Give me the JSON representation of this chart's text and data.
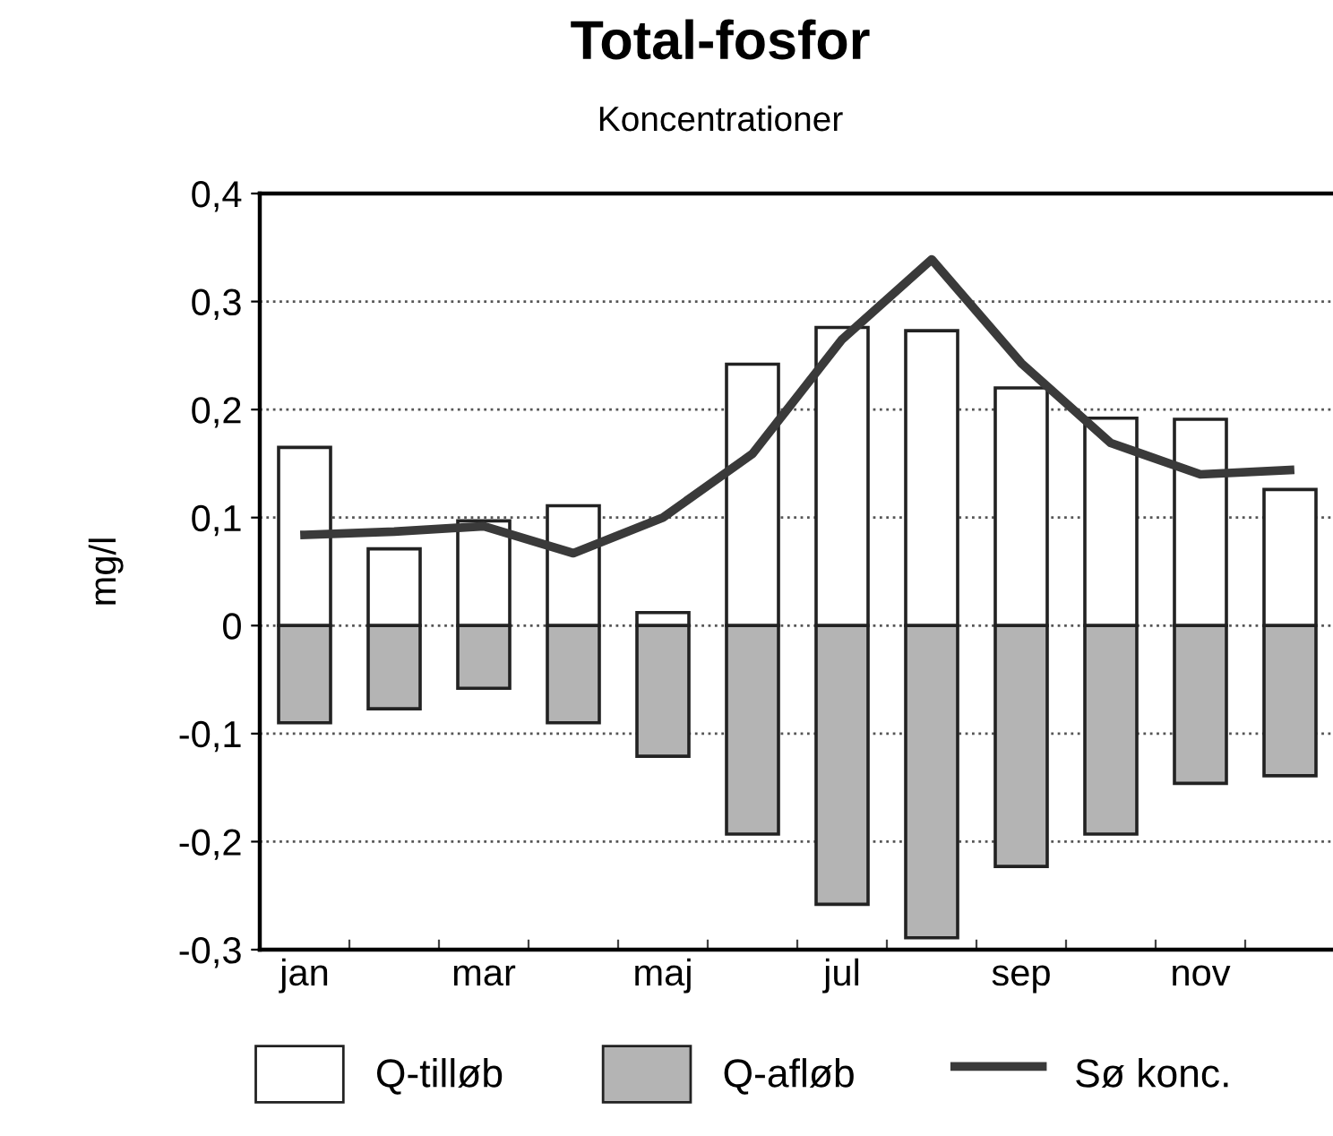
{
  "chart_data": {
    "type": "bar",
    "title": "Total-fosfor",
    "subtitle": "Koncentrationer",
    "ylabel": "mg/l",
    "categories": [
      "jan",
      null,
      "mar",
      null,
      "maj",
      null,
      "jul",
      null,
      "sep",
      null,
      "nov",
      null
    ],
    "series": [
      {
        "name": "Q-tilløb",
        "color": "#ffffff",
        "values": [
          0.165,
          0.071,
          0.097,
          0.111,
          0.012,
          0.242,
          0.276,
          0.273,
          0.22,
          0.192,
          0.191,
          0.126
        ]
      },
      {
        "name": "Q-afløb",
        "color": "#b4b4b4",
        "values": [
          -0.09,
          -0.077,
          -0.058,
          -0.09,
          -0.121,
          -0.193,
          -0.258,
          -0.289,
          -0.223,
          -0.193,
          -0.146,
          -0.139
        ]
      },
      {
        "name": "Sø konc.",
        "type": "line",
        "color": "#3a3a3a",
        "values": [
          0.084,
          0.087,
          0.092,
          0.067,
          0.1,
          0.159,
          0.265,
          0.339,
          0.243,
          0.169,
          0.14,
          0.144
        ]
      }
    ],
    "ylim": [
      -0.3,
      0.4
    ],
    "yticks": [
      {
        "value": -0.3,
        "label": "-0,3"
      },
      {
        "value": -0.2,
        "label": "-0,2"
      },
      {
        "value": -0.1,
        "label": "-0,1"
      },
      0,
      {
        "value": 0.1,
        "label": "0,1"
      },
      {
        "value": 0.2,
        "label": "0,2"
      },
      {
        "value": 0.3,
        "label": "0,3"
      },
      {
        "value": 0.4,
        "label": "0,4"
      }
    ],
    "stacked": true,
    "grid": "y",
    "legend": "bottom",
    "marker": "none",
    "line_style": "solid"
  }
}
